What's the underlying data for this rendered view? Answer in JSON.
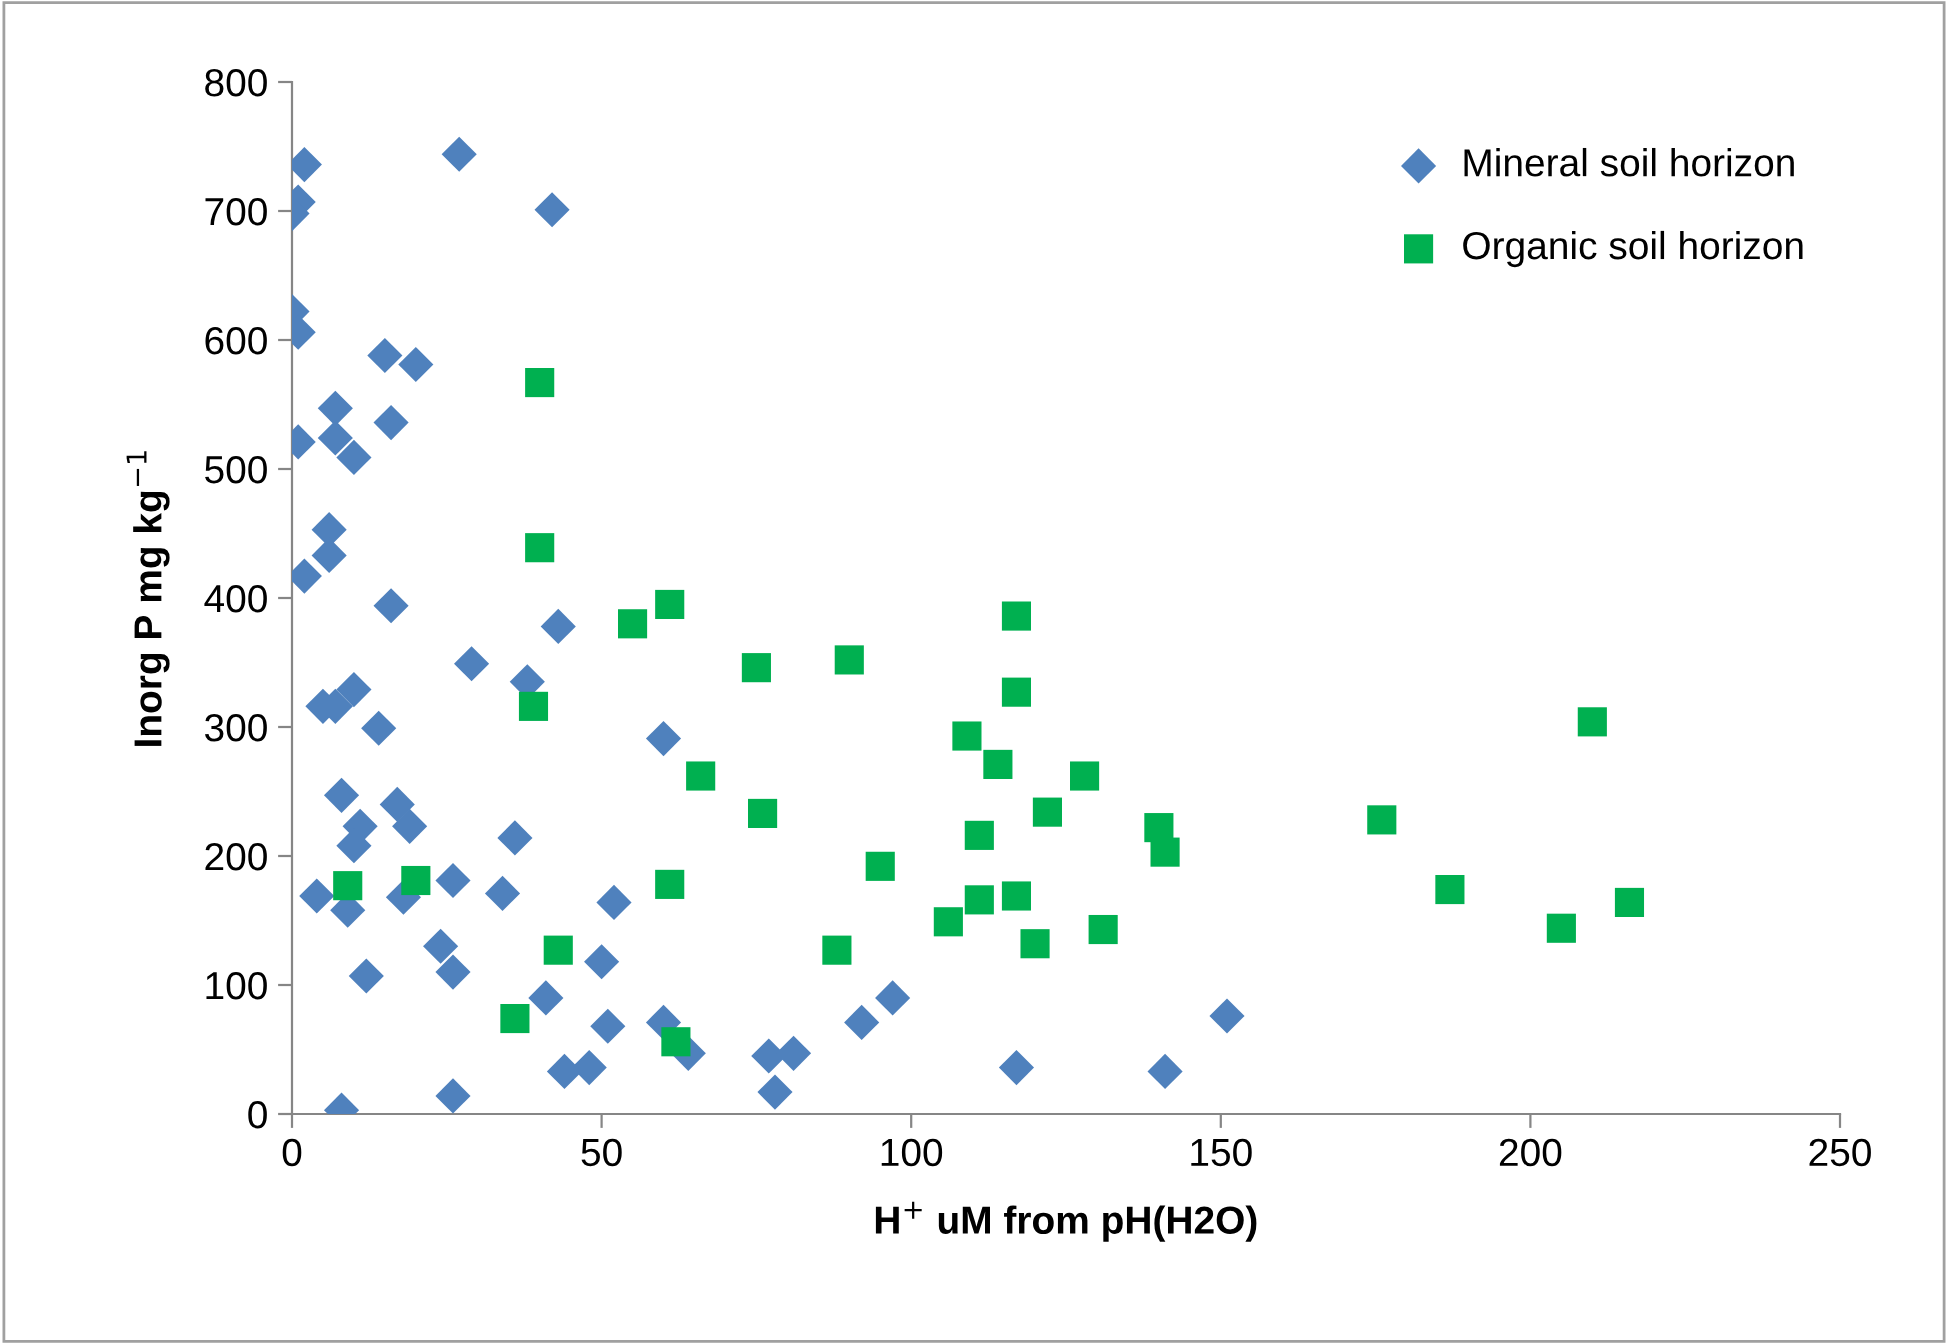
{
  "chart_data": {
    "type": "scatter",
    "xlabel": "H$^{+}$ uM from pH(H2O)",
    "ylabel": "Inorg P mg kg$^{−1}$",
    "xlim": [
      0,
      250
    ],
    "xticks": [
      0,
      50,
      100,
      150,
      200,
      250
    ],
    "ylim": [
      0,
      800
    ],
    "yticks": [
      0,
      100,
      200,
      300,
      400,
      500,
      600,
      700,
      800
    ],
    "grid": false,
    "legend": "top right",
    "series": [
      {
        "name": "Mineral soil horizon",
        "color": "#4f81bd",
        "marker": "diamond",
        "x": [
          2,
          27,
          42,
          1,
          0,
          0,
          1,
          15,
          20,
          7,
          16,
          1,
          7,
          10,
          6,
          6,
          2,
          16,
          43,
          29,
          38,
          5,
          7,
          10,
          14,
          8,
          17,
          11,
          19,
          10,
          36,
          4,
          9,
          18,
          26,
          34,
          24,
          26,
          12,
          41,
          44,
          48,
          8,
          26,
          60,
          52,
          50,
          51,
          60,
          64,
          77,
          81,
          78,
          92,
          97,
          117,
          141,
          151
        ],
        "values": [
          736,
          744,
          701,
          707,
          698,
          622,
          606,
          588,
          581,
          547,
          536,
          521,
          524,
          509,
          453,
          433,
          417,
          394,
          378,
          349,
          335,
          316,
          316,
          329,
          299,
          247,
          240,
          223,
          223,
          208,
          214,
          169,
          158,
          168,
          181,
          171,
          130,
          110,
          107,
          90,
          33,
          36,
          3,
          14,
          291,
          164,
          118,
          68,
          71,
          47,
          45,
          47,
          17,
          71,
          90,
          36,
          33,
          76
        ]
      },
      {
        "name": "Organic soil horizon",
        "color": "#00b050",
        "marker": "square",
        "x": [
          40,
          40,
          39,
          9,
          20,
          43,
          36,
          55,
          61,
          75,
          90,
          117,
          117,
          109,
          114,
          128,
          66,
          76,
          122,
          111,
          140,
          141,
          95,
          61,
          117,
          111,
          106,
          120,
          131,
          88,
          62,
          210,
          176,
          187,
          216,
          205
        ],
        "values": [
          567,
          439,
          316,
          177,
          181,
          127,
          74,
          380,
          395,
          346,
          352,
          386,
          327,
          293,
          271,
          262,
          262,
          233,
          234,
          216,
          222,
          203,
          192,
          178,
          169,
          166,
          149,
          132,
          143,
          127,
          56,
          304,
          228,
          174,
          164,
          144
        ]
      }
    ]
  }
}
